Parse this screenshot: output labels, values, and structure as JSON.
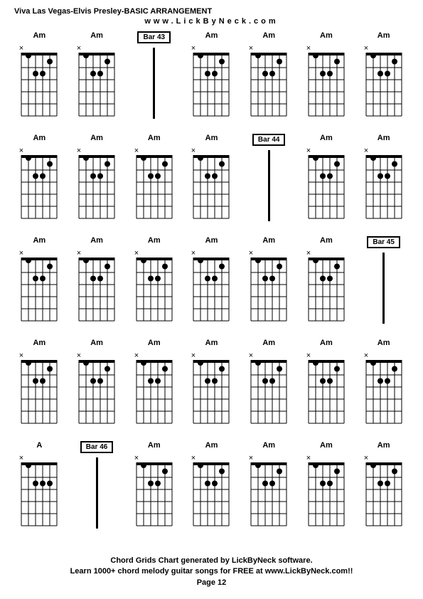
{
  "header": {
    "title": "Viva Las Vegas-Elvis Presley-BASIC ARRANGEMENT",
    "url": "www.LickByNeck.com"
  },
  "footer": {
    "line1": "Chord Grids Chart generated by LickByNeck software.",
    "line2": "Learn 1000+ chord melody guitar songs for FREE at www.LickByNeck.com!!",
    "page": "Page 12"
  },
  "chord_style": {
    "fretboard_width": 50,
    "fretboard_height": 85,
    "num_strings": 6,
    "num_frets": 5,
    "line_color": "#000000",
    "dot_color": "#000000",
    "dot_radius": 4,
    "nut_height": 4,
    "x_marker": "×"
  },
  "chords": {
    "Am": {
      "label": "Am",
      "markers": [
        "x",
        "",
        "",
        "",
        "",
        ""
      ],
      "dots": [
        {
          "string": 1,
          "fret": 0.5
        },
        {
          "string": 2,
          "fret": 2
        },
        {
          "string": 3,
          "fret": 2
        },
        {
          "string": 4,
          "fret": 1
        }
      ]
    },
    "A": {
      "label": "A",
      "markers": [
        "x",
        "",
        "",
        "",
        "",
        ""
      ],
      "dots": [
        {
          "string": 1,
          "fret": 0.5
        },
        {
          "string": 2,
          "fret": 2
        },
        {
          "string": 3,
          "fret": 2
        },
        {
          "string": 4,
          "fret": 2
        }
      ]
    }
  },
  "grid": [
    [
      {
        "type": "chord",
        "chord": "Am"
      },
      {
        "type": "chord",
        "chord": "Am"
      },
      {
        "type": "bar",
        "label": "Bar 43"
      },
      {
        "type": "chord",
        "chord": "Am"
      },
      {
        "type": "chord",
        "chord": "Am"
      },
      {
        "type": "chord",
        "chord": "Am"
      },
      {
        "type": "chord",
        "chord": "Am"
      }
    ],
    [
      {
        "type": "chord",
        "chord": "Am"
      },
      {
        "type": "chord",
        "chord": "Am"
      },
      {
        "type": "chord",
        "chord": "Am"
      },
      {
        "type": "chord",
        "chord": "Am"
      },
      {
        "type": "bar",
        "label": "Bar 44"
      },
      {
        "type": "chord",
        "chord": "Am"
      },
      {
        "type": "chord",
        "chord": "Am"
      }
    ],
    [
      {
        "type": "chord",
        "chord": "Am"
      },
      {
        "type": "chord",
        "chord": "Am"
      },
      {
        "type": "chord",
        "chord": "Am"
      },
      {
        "type": "chord",
        "chord": "Am"
      },
      {
        "type": "chord",
        "chord": "Am"
      },
      {
        "type": "chord",
        "chord": "Am"
      },
      {
        "type": "bar",
        "label": "Bar 45"
      }
    ],
    [
      {
        "type": "chord",
        "chord": "Am"
      },
      {
        "type": "chord",
        "chord": "Am"
      },
      {
        "type": "chord",
        "chord": "Am"
      },
      {
        "type": "chord",
        "chord": "Am"
      },
      {
        "type": "chord",
        "chord": "Am"
      },
      {
        "type": "chord",
        "chord": "Am"
      },
      {
        "type": "chord",
        "chord": "Am"
      }
    ],
    [
      {
        "type": "chord",
        "chord": "A"
      },
      {
        "type": "bar",
        "label": "Bar 46"
      },
      {
        "type": "chord",
        "chord": "Am"
      },
      {
        "type": "chord",
        "chord": "Am"
      },
      {
        "type": "chord",
        "chord": "Am"
      },
      {
        "type": "chord",
        "chord": "Am"
      },
      {
        "type": "chord",
        "chord": "Am"
      }
    ]
  ]
}
